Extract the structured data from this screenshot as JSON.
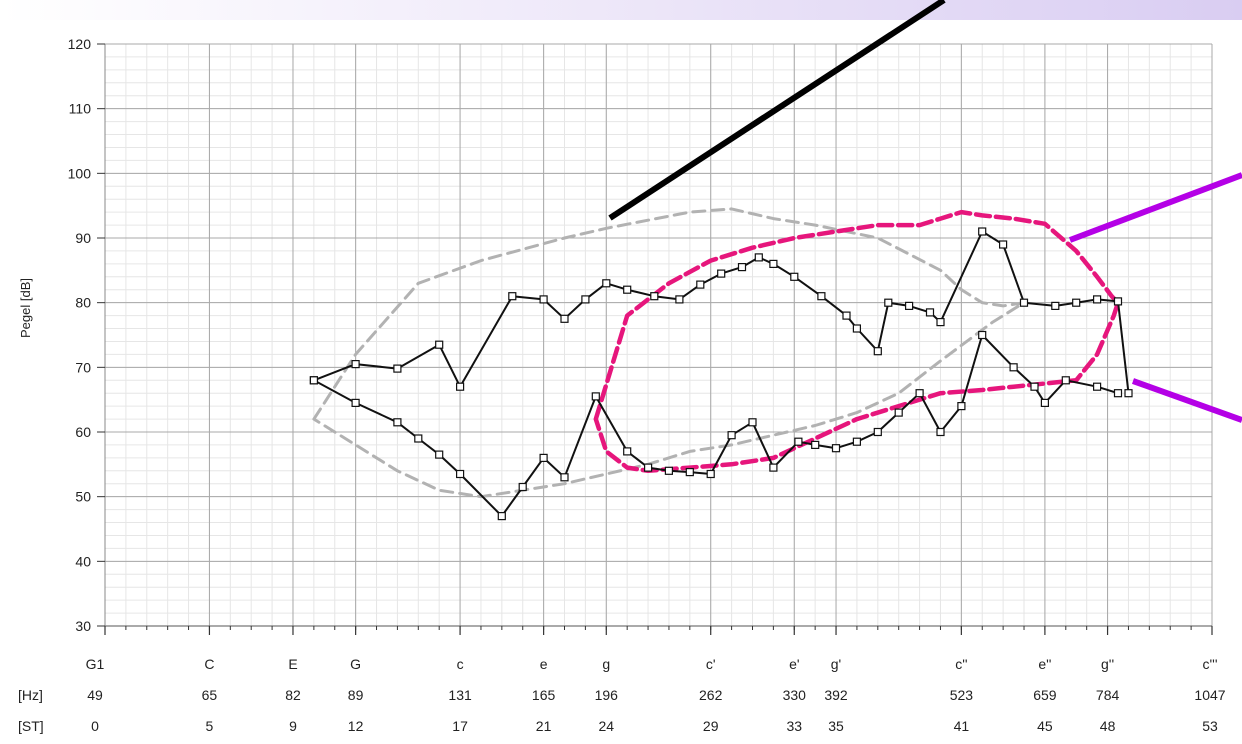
{
  "chart_data": {
    "type": "line",
    "title": "",
    "ylabel": "Pegel [dB]",
    "xlabel": "",
    "ylim": [
      30,
      120
    ],
    "yticks": [
      30,
      40,
      50,
      60,
      70,
      80,
      90,
      100,
      110,
      120
    ],
    "xlim": [
      0,
      53
    ],
    "x_unit": "ST",
    "grid": true,
    "axis_rows": [
      {
        "label": "",
        "values": [
          "G1",
          "C",
          "E",
          "G",
          "c",
          "e",
          "g",
          "c'",
          "e'",
          "g'",
          "c''",
          "e''",
          "g''",
          "c'''"
        ]
      },
      {
        "label": "[Hz]",
        "values": [
          "49",
          "65",
          "82",
          "89",
          "131",
          "165",
          "196",
          "262",
          "330",
          "392",
          "523",
          "659",
          "784",
          "1047"
        ]
      },
      {
        "label": "[ST]",
        "values": [
          "0",
          "5",
          "9",
          "12",
          "17",
          "21",
          "24",
          "29",
          "33",
          "35",
          "41",
          "45",
          "48",
          "53"
        ]
      }
    ],
    "axis_positions_st": [
      0,
      5,
      9,
      12,
      17,
      21,
      24,
      29,
      33,
      35,
      41,
      45,
      48,
      53
    ],
    "series": [
      {
        "style": "solid",
        "marker": "square",
        "color": "#111111",
        "x": [
          10,
          12,
          14,
          15,
          16,
          17,
          19,
          20,
          21,
          22,
          23.5,
          25,
          26,
          27,
          28,
          29,
          30,
          31,
          32,
          33.2,
          34,
          35,
          36,
          37,
          38,
          39,
          40,
          41,
          42,
          43.5,
          44.5,
          45,
          46,
          47.5,
          48.5
        ],
        "y": [
          68,
          64.5,
          61.5,
          59,
          56.5,
          53.5,
          47,
          51.5,
          56,
          53,
          65.5,
          57,
          54.5,
          54,
          53.8,
          53.5,
          59.5,
          61.5,
          54.5,
          58.5,
          58,
          57.5,
          58.5,
          60,
          63,
          66,
          60,
          64,
          75,
          70,
          67,
          64.5,
          68,
          67,
          66
        ]
      },
      {
        "style": "solid",
        "marker": "square",
        "color": "#111111",
        "x": [
          10,
          12,
          14,
          16,
          17,
          19.5,
          21,
          22,
          23,
          24,
          25,
          26.3,
          27.5,
          28.5,
          29.5,
          30.5,
          31.3,
          32,
          33,
          34.3,
          35.5,
          36,
          37,
          37.5,
          38.5,
          39.5,
          40,
          42,
          43,
          44,
          45.5,
          46.5,
          47.5,
          48.5,
          49
        ],
        "y": [
          68,
          70.5,
          69.8,
          73.5,
          67,
          81,
          80.5,
          77.5,
          80.5,
          83,
          82,
          81,
          80.5,
          82.8,
          84.5,
          85.5,
          87,
          86,
          84,
          81,
          78,
          76,
          72.5,
          80,
          79.5,
          78.5,
          77,
          91,
          89,
          80,
          79.5,
          80,
          80.5,
          80.2,
          66
        ]
      },
      {
        "style": "dashed",
        "color": "#b2b2b2",
        "x": [
          10,
          12,
          15,
          18,
          22,
          24,
          28,
          30,
          32,
          34,
          37,
          40,
          41,
          42,
          43,
          44,
          42.5,
          40,
          38,
          36,
          34,
          32,
          30,
          28,
          26,
          24,
          22,
          20,
          18,
          16,
          14,
          12,
          10.5,
          10
        ],
        "y": [
          62,
          72,
          83,
          86.5,
          90,
          91.5,
          94,
          94.5,
          93,
          92,
          90,
          85,
          82,
          80,
          79.5,
          80,
          77,
          71,
          66,
          63,
          61,
          59.5,
          58,
          57,
          55,
          53.5,
          52,
          51,
          50,
          51,
          54,
          58,
          61,
          62
        ]
      },
      {
        "style": "dashed",
        "color": "#e6167c",
        "x": [
          23.5,
          25,
          27,
          29,
          31,
          33,
          35,
          37,
          39,
          40,
          41,
          42,
          43.5,
          45,
          46.5,
          47.5,
          48.2,
          48.5,
          48.3,
          47.5,
          46.5,
          45,
          43.5,
          42,
          40,
          38,
          36,
          34,
          32,
          30,
          28,
          26,
          25,
          24,
          23.5
        ],
        "y": [
          62,
          78,
          83,
          86.5,
          88.5,
          90,
          91,
          92,
          92,
          93,
          94,
          93.5,
          93,
          92.2,
          88,
          84,
          81,
          80,
          78,
          72,
          68,
          67.5,
          67,
          66.5,
          66,
          64,
          62,
          59,
          56,
          55,
          54.5,
          54,
          54.5,
          57,
          62
        ]
      }
    ]
  }
}
